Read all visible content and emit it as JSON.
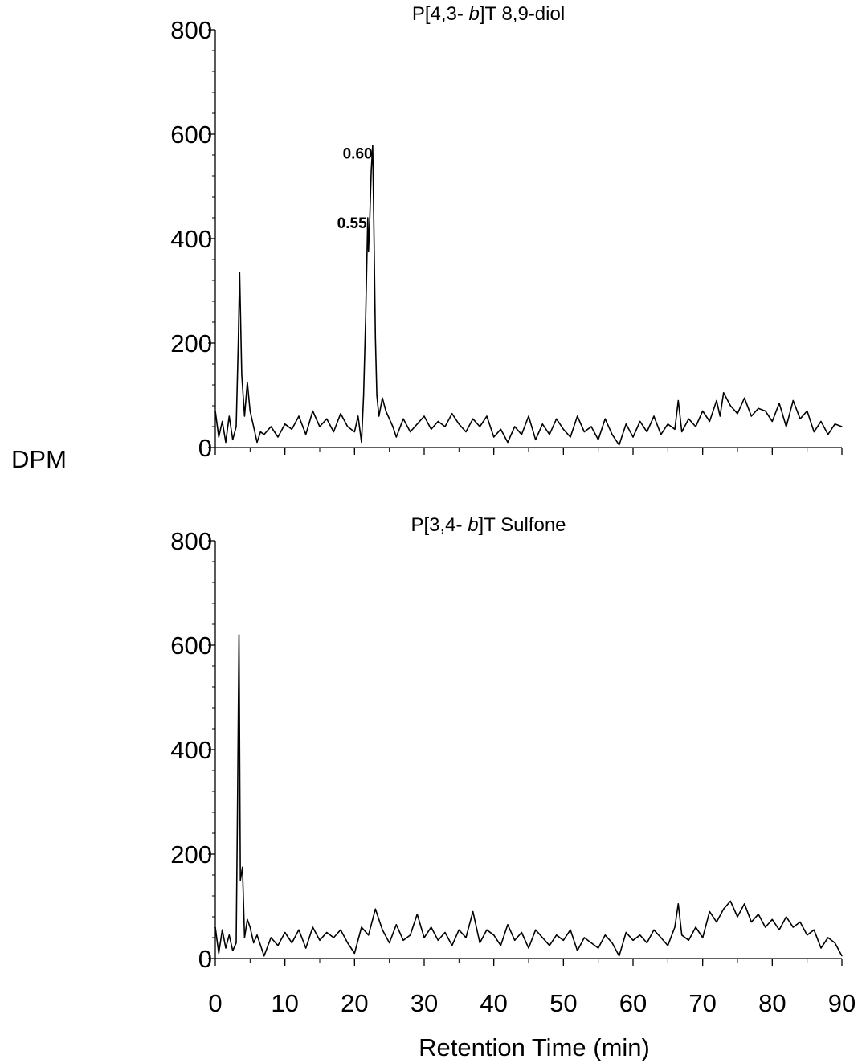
{
  "y_axis_label": "DPM",
  "x_axis_label": "Retention Time (min)",
  "chart_data": [
    {
      "type": "line",
      "title_parts": [
        "P[4,3- ",
        "b",
        "]T 8,9-diol"
      ],
      "xlim": [
        0,
        90
      ],
      "ylim": [
        0,
        800
      ],
      "x_ticks": [
        0,
        10,
        20,
        30,
        40,
        50,
        60,
        70,
        80,
        90
      ],
      "y_ticks": [
        0,
        200,
        400,
        600,
        800
      ],
      "tick_labels_y": [
        "0",
        "200",
        "400",
        "600",
        "800"
      ],
      "annotations": [
        {
          "text": "0.60",
          "x": 22.8,
          "y": 578
        },
        {
          "text": "0.55",
          "x": 22.0,
          "y": 445
        }
      ],
      "series": [
        {
          "x": [
            0,
            0.5,
            1,
            1.5,
            2,
            2.5,
            3,
            3.3,
            3.5,
            3.8,
            4.2,
            4.6,
            5,
            5.5,
            6,
            6.5,
            7,
            8,
            9,
            10,
            11,
            12,
            13,
            14,
            15,
            16,
            17,
            18,
            19,
            20,
            20.5,
            21,
            21.3,
            21.6,
            21.9,
            22.0,
            22.2,
            22.4,
            22.6,
            22.8,
            23.0,
            23.2,
            23.5,
            24,
            24.5,
            25,
            25.5,
            26,
            27,
            28,
            29,
            30,
            31,
            32,
            33,
            34,
            35,
            36,
            37,
            38,
            39,
            40,
            41,
            42,
            43,
            44,
            45,
            46,
            47,
            48,
            49,
            50,
            51,
            52,
            53,
            54,
            55,
            56,
            57,
            58,
            59,
            60,
            61,
            62,
            63,
            64,
            65,
            66,
            66.5,
            67,
            68,
            69,
            70,
            71,
            72,
            72.5,
            73,
            74,
            75,
            76,
            77,
            78,
            79,
            80,
            81,
            82,
            83,
            84,
            85,
            86,
            87,
            88,
            89,
            90
          ],
          "y": [
            70,
            20,
            50,
            10,
            60,
            15,
            40,
            200,
            335,
            140,
            60,
            125,
            70,
            40,
            10,
            30,
            25,
            40,
            20,
            45,
            35,
            60,
            25,
            70,
            40,
            55,
            30,
            65,
            40,
            30,
            60,
            10,
            100,
            250,
            440,
            375,
            445,
            530,
            578,
            400,
            210,
            100,
            60,
            95,
            70,
            55,
            40,
            20,
            55,
            30,
            45,
            60,
            35,
            50,
            40,
            65,
            45,
            30,
            55,
            40,
            60,
            20,
            35,
            10,
            40,
            25,
            60,
            15,
            45,
            25,
            55,
            35,
            20,
            60,
            30,
            40,
            15,
            55,
            25,
            5,
            45,
            20,
            50,
            30,
            60,
            25,
            45,
            35,
            90,
            30,
            55,
            40,
            70,
            50,
            90,
            60,
            105,
            80,
            65,
            95,
            60,
            75,
            70,
            50,
            85,
            40,
            90,
            55,
            70,
            30,
            50,
            25,
            45,
            40
          ]
        }
      ]
    },
    {
      "type": "line",
      "title_parts": [
        "P[3,4- ",
        "b",
        "]T Sulfone"
      ],
      "xlim": [
        0,
        90
      ],
      "ylim": [
        0,
        800
      ],
      "x_ticks": [
        0,
        10,
        20,
        30,
        40,
        50,
        60,
        70,
        80,
        90
      ],
      "y_ticks": [
        0,
        200,
        400,
        600,
        800
      ],
      "tick_labels_x": [
        "0",
        "10",
        "20",
        "30",
        "40",
        "50",
        "60",
        "70",
        "80",
        "90"
      ],
      "tick_labels_y": [
        "0",
        "200",
        "400",
        "600",
        "800"
      ],
      "series": [
        {
          "x": [
            0,
            0.5,
            1,
            1.5,
            2,
            2.5,
            3,
            3.2,
            3.4,
            3.6,
            3.9,
            4.2,
            4.6,
            5,
            5.5,
            6,
            7,
            8,
            9,
            10,
            11,
            12,
            13,
            14,
            15,
            16,
            17,
            18,
            19,
            20,
            21,
            22,
            23,
            24,
            25,
            26,
            27,
            28,
            29,
            30,
            31,
            32,
            33,
            34,
            35,
            36,
            37,
            38,
            39,
            40,
            41,
            42,
            43,
            44,
            45,
            46,
            47,
            48,
            49,
            50,
            51,
            52,
            53,
            54,
            55,
            56,
            57,
            58,
            59,
            60,
            61,
            62,
            63,
            64,
            65,
            66,
            66.5,
            67,
            68,
            69,
            70,
            71,
            72,
            73,
            74,
            75,
            76,
            77,
            78,
            79,
            80,
            81,
            82,
            83,
            84,
            85,
            86,
            87,
            88,
            89,
            90
          ],
          "y": [
            60,
            10,
            55,
            20,
            45,
            15,
            30,
            300,
            620,
            150,
            175,
            40,
            75,
            60,
            30,
            45,
            5,
            40,
            25,
            50,
            30,
            55,
            20,
            60,
            35,
            50,
            40,
            55,
            30,
            10,
            60,
            45,
            95,
            55,
            30,
            65,
            35,
            45,
            85,
            40,
            60,
            35,
            50,
            25,
            55,
            40,
            90,
            30,
            55,
            45,
            25,
            65,
            35,
            50,
            20,
            55,
            40,
            25,
            45,
            35,
            55,
            15,
            40,
            30,
            20,
            45,
            30,
            5,
            50,
            35,
            45,
            30,
            55,
            40,
            25,
            60,
            105,
            45,
            35,
            60,
            40,
            90,
            70,
            95,
            110,
            80,
            105,
            70,
            85,
            60,
            75,
            55,
            80,
            60,
            70,
            45,
            55,
            20,
            40,
            30,
            5
          ]
        }
      ]
    }
  ]
}
